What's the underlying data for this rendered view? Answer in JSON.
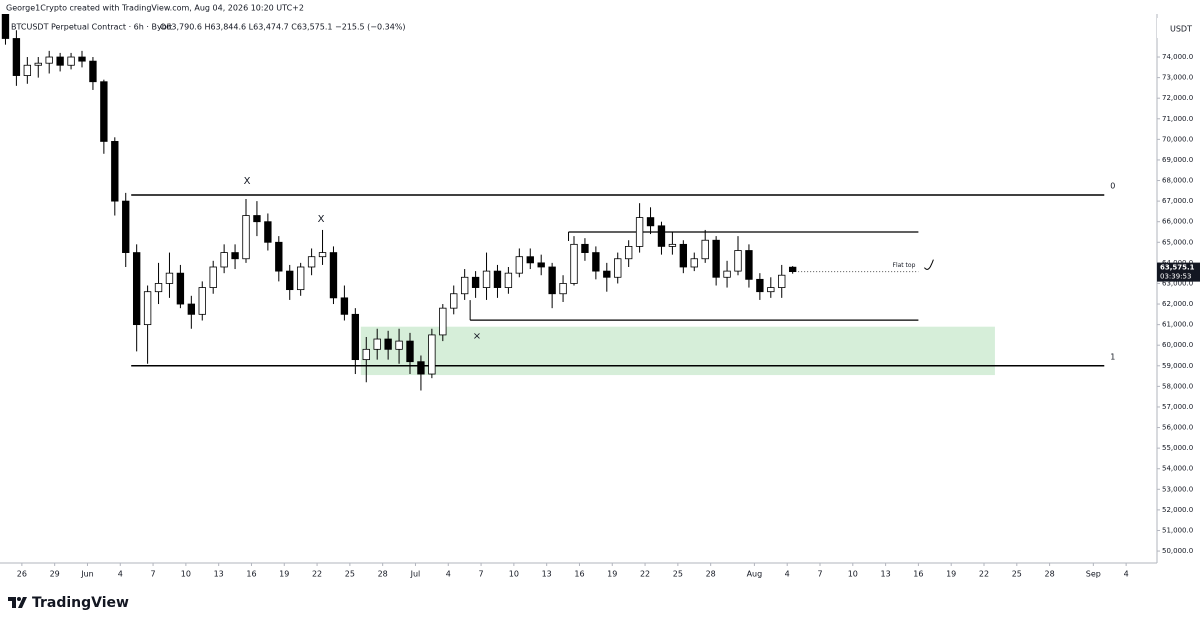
{
  "chart_data": {
    "type": "candlestick",
    "credit": "George1Crypto created with TradingView.com, Aug 04, 2026 10:20 UTC+2",
    "title": "BTCUSDT Perpetual Contract · 6h · Bybit",
    "ohlc_legend": "O63,790.6 H63,844.6 L63,474.7 C63,575.1 −215.5 (−0.34%)",
    "currency": "USDT",
    "last_price_label": "63,575.1",
    "countdown": "03:39:53",
    "brand": "TradingView",
    "up_color": "#ffffff",
    "down_color": "#000000",
    "wick_color": "#000000",
    "grid": false,
    "x": [
      "2026-05-24",
      "2026-05-25",
      "2026-05-26",
      "2026-05-27",
      "2026-05-28",
      "2026-05-29",
      "2026-05-30",
      "2026-05-31",
      "2026-06-01",
      "2026-06-02",
      "2026-06-03",
      "2026-06-04",
      "2026-06-05",
      "2026-06-06",
      "2026-06-07",
      "2026-06-08",
      "2026-06-09",
      "2026-06-10",
      "2026-06-11",
      "2026-06-12",
      "2026-06-13",
      "2026-06-14",
      "2026-06-15",
      "2026-06-16",
      "2026-06-17",
      "2026-06-18",
      "2026-06-19",
      "2026-06-20",
      "2026-06-21",
      "2026-06-22",
      "2026-06-23",
      "2026-06-24",
      "2026-06-25",
      "2026-06-26",
      "2026-06-27",
      "2026-06-28",
      "2026-06-29",
      "2026-06-30",
      "2026-07-01",
      "2026-07-02",
      "2026-07-03",
      "2026-07-04",
      "2026-07-05",
      "2026-07-06",
      "2026-07-07",
      "2026-07-08",
      "2026-07-09",
      "2026-07-10",
      "2026-07-11",
      "2026-07-12",
      "2026-07-13",
      "2026-07-14",
      "2026-07-15",
      "2026-07-16",
      "2026-07-17",
      "2026-07-18",
      "2026-07-19",
      "2026-07-20",
      "2026-07-21",
      "2026-07-22",
      "2026-07-23",
      "2026-07-24",
      "2026-07-25",
      "2026-07-26",
      "2026-07-27",
      "2026-07-28",
      "2026-07-29",
      "2026-07-30",
      "2026-07-31",
      "2026-08-01",
      "2026-08-02",
      "2026-08-03",
      "2026-08-04"
    ],
    "open": [
      76400,
      74900,
      73100,
      73600,
      73700,
      74000,
      73600,
      74000,
      73800,
      72800,
      69900,
      67000,
      64500,
      61000,
      62600,
      63000,
      63500,
      62000,
      61500,
      62800,
      63800,
      64500,
      64200,
      66300,
      66000,
      65000,
      63600,
      62700,
      63800,
      64300,
      64500,
      62300,
      61500,
      59300,
      59800,
      60300,
      59800,
      60200,
      59200,
      58600,
      60500,
      61800,
      62500,
      63300,
      62800,
      63600,
      62800,
      63500,
      64300,
      64000,
      63800,
      62500,
      63000,
      64900,
      64500,
      63600,
      63300,
      64200,
      64800,
      66200,
      65800,
      64800,
      64900,
      63800,
      64200,
      65100,
      63300,
      63600,
      64600,
      63200,
      62600,
      62800,
      63790.6
    ],
    "high": [
      76800,
      75300,
      74000,
      74000,
      74300,
      74200,
      74200,
      74300,
      74000,
      72900,
      70100,
      67400,
      64900,
      62900,
      64000,
      64500,
      63900,
      62400,
      63100,
      64100,
      64900,
      64900,
      67100,
      67000,
      66400,
      65300,
      63900,
      64000,
      64700,
      65600,
      64800,
      62900,
      61800,
      60400,
      60800,
      60700,
      60800,
      60600,
      59500,
      60800,
      62000,
      62900,
      63700,
      63600,
      64500,
      63900,
      63800,
      64700,
      64700,
      64400,
      64000,
      63400,
      65300,
      65200,
      64800,
      64000,
      64500,
      65100,
      66900,
      66700,
      66000,
      65500,
      65100,
      64500,
      65600,
      65300,
      64100,
      65300,
      64900,
      63500,
      63300,
      63900,
      63844.6
    ],
    "low": [
      74600,
      72600,
      72700,
      73000,
      73200,
      73300,
      73400,
      73500,
      72400,
      69300,
      66300,
      63800,
      59700,
      59100,
      62000,
      62300,
      61800,
      60800,
      61200,
      62500,
      63500,
      63700,
      64000,
      65300,
      64600,
      63100,
      62200,
      62400,
      63400,
      63900,
      62000,
      61200,
      58600,
      58200,
      59300,
      59300,
      59100,
      58600,
      57800,
      58400,
      60200,
      61500,
      62200,
      62300,
      62200,
      62300,
      62500,
      63300,
      63700,
      63400,
      61800,
      62100,
      62900,
      64100,
      63200,
      62600,
      63000,
      63800,
      64500,
      65400,
      64400,
      64400,
      63500,
      63600,
      64000,
      62900,
      62800,
      63400,
      62800,
      62200,
      62300,
      62300,
      63474.7
    ],
    "close": [
      74900,
      73100,
      73600,
      73700,
      74000,
      73600,
      74000,
      73800,
      72800,
      69900,
      67000,
      64500,
      61000,
      62600,
      63000,
      63500,
      62000,
      61500,
      62800,
      63800,
      64500,
      64200,
      66300,
      66000,
      65000,
      63600,
      62700,
      63800,
      64300,
      64500,
      62300,
      61500,
      59300,
      59800,
      60300,
      59800,
      60200,
      59200,
      58600,
      60500,
      61800,
      62500,
      63300,
      62800,
      63600,
      62800,
      63500,
      64300,
      64000,
      63800,
      62500,
      63000,
      64900,
      64500,
      63600,
      63300,
      64200,
      64800,
      66200,
      65800,
      64800,
      64900,
      63800,
      64200,
      65100,
      63300,
      63600,
      64600,
      63200,
      62600,
      62800,
      63400,
      63575.1
    ],
    "xlim": [
      "2026-05-24",
      "2026-09-06"
    ],
    "xticks": [
      {
        "value": "2026-05-26",
        "label": "26"
      },
      {
        "value": "2026-05-29",
        "label": "29"
      },
      {
        "value": "2026-06-01",
        "label": "Jun"
      },
      {
        "value": "2026-06-04",
        "label": "4"
      },
      {
        "value": "2026-06-07",
        "label": "7"
      },
      {
        "value": "2026-06-10",
        "label": "10"
      },
      {
        "value": "2026-06-13",
        "label": "13"
      },
      {
        "value": "2026-06-16",
        "label": "16"
      },
      {
        "value": "2026-06-19",
        "label": "19"
      },
      {
        "value": "2026-06-22",
        "label": "22"
      },
      {
        "value": "2026-06-25",
        "label": "25"
      },
      {
        "value": "2026-06-28",
        "label": "28"
      },
      {
        "value": "2026-07-01",
        "label": "Jul"
      },
      {
        "value": "2026-07-04",
        "label": "4"
      },
      {
        "value": "2026-07-07",
        "label": "7"
      },
      {
        "value": "2026-07-10",
        "label": "10"
      },
      {
        "value": "2026-07-13",
        "label": "13"
      },
      {
        "value": "2026-07-16",
        "label": "16"
      },
      {
        "value": "2026-07-19",
        "label": "19"
      },
      {
        "value": "2026-07-22",
        "label": "22"
      },
      {
        "value": "2026-07-25",
        "label": "25"
      },
      {
        "value": "2026-07-28",
        "label": "28"
      },
      {
        "value": "2026-08-01",
        "label": "Aug"
      },
      {
        "value": "2026-08-04",
        "label": "4"
      },
      {
        "value": "2026-08-07",
        "label": "7"
      },
      {
        "value": "2026-08-10",
        "label": "10"
      },
      {
        "value": "2026-08-13",
        "label": "13"
      },
      {
        "value": "2026-08-16",
        "label": "16"
      },
      {
        "value": "2026-08-19",
        "label": "19"
      },
      {
        "value": "2026-08-22",
        "label": "22"
      },
      {
        "value": "2026-08-25",
        "label": "25"
      },
      {
        "value": "2026-08-28",
        "label": "28"
      },
      {
        "value": "2026-09-01",
        "label": "Sep"
      },
      {
        "value": "2026-09-04",
        "label": "4"
      }
    ],
    "ylim": [
      49420,
      76090
    ],
    "yticks": [
      {
        "value": 50000,
        "label": "50,000.0"
      },
      {
        "value": 51000,
        "label": "51,000.0"
      },
      {
        "value": 52000,
        "label": "52,000.0"
      },
      {
        "value": 53000,
        "label": "53,000.0"
      },
      {
        "value": 54000,
        "label": "54,000.0"
      },
      {
        "value": 55000,
        "label": "55,000.0"
      },
      {
        "value": 56000,
        "label": "56,000.0"
      },
      {
        "value": 57000,
        "label": "57,000.0"
      },
      {
        "value": 58000,
        "label": "58,000.0"
      },
      {
        "value": 59000,
        "label": "59,000.0"
      },
      {
        "value": 60000,
        "label": "60,000.0"
      },
      {
        "value": 61000,
        "label": "61,000.0"
      },
      {
        "value": 62000,
        "label": "62,000.0"
      },
      {
        "value": 63000,
        "label": "63,000.0"
      },
      {
        "value": 64000,
        "label": "64,000.0"
      },
      {
        "value": 65000,
        "label": "65,000.0"
      },
      {
        "value": 66000,
        "label": "66,000.0"
      },
      {
        "value": 67000,
        "label": "67,000.0"
      },
      {
        "value": 68000,
        "label": "68,000.0"
      },
      {
        "value": 69000,
        "label": "69,000.0"
      },
      {
        "value": 70000,
        "label": "70,000.0"
      },
      {
        "value": 71000,
        "label": "71,000.0"
      },
      {
        "value": 72000,
        "label": "72,000.0"
      },
      {
        "value": 73000,
        "label": "73,000.0"
      },
      {
        "value": 74000,
        "label": "74,000.0"
      }
    ],
    "drawings": {
      "fib": [
        {
          "label": "0",
          "value": 67300
        },
        {
          "label": "1",
          "value": 59000
        }
      ],
      "fib_from": "2026-06-05",
      "fib_to": "2026-09-02",
      "zone": {
        "from": "2026-06-26",
        "to": "2026-08-23",
        "top": 60900,
        "bottom": 58550,
        "color": "#d6eed9"
      },
      "range": {
        "top": 65500,
        "top_from": "2026-07-15",
        "bottom": 61220,
        "bottom_from": "2026-07-06",
        "to": "2026-08-16"
      },
      "annotations": [
        "X",
        "X",
        "×"
      ],
      "flat_top": "Flat top"
    }
  }
}
